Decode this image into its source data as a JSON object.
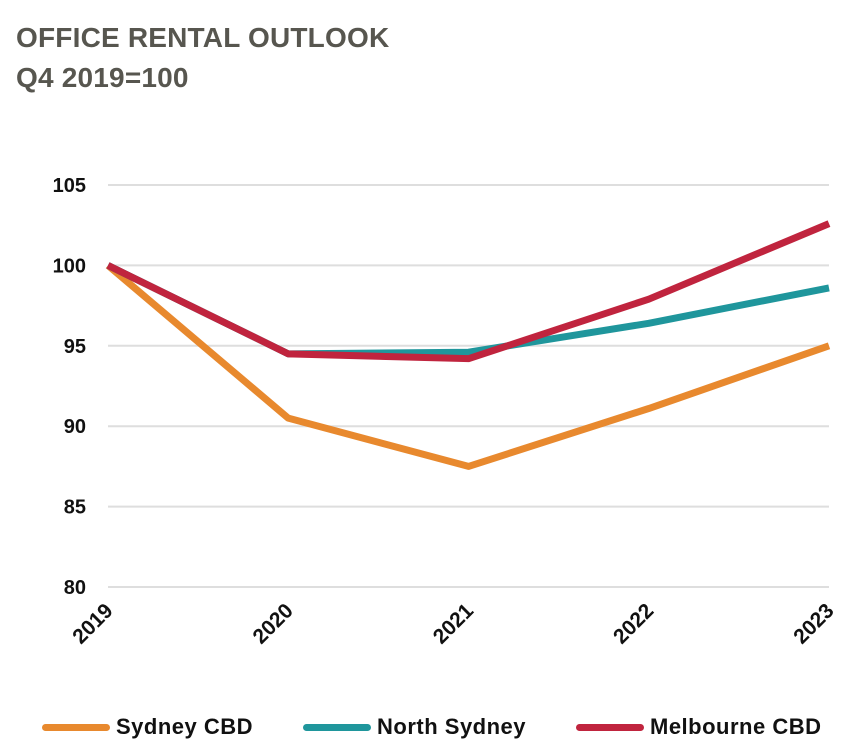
{
  "chart_data": {
    "type": "line",
    "title": "OFFICE RENTAL OUTLOOK",
    "subtitle": "Q4 2019=100",
    "categories": [
      "2019",
      "2020",
      "2021",
      "2022",
      "2023"
    ],
    "ylim": [
      80,
      105
    ],
    "yticks": [
      "80",
      "85",
      "90",
      "95",
      "100",
      "105"
    ],
    "grid": true,
    "legend_position": "bottom",
    "series": [
      {
        "name": "Sydney CBD",
        "color": "#e8892e",
        "values": [
          100,
          90.5,
          87.5,
          91.1,
          95.0
        ]
      },
      {
        "name": "North Sydney",
        "color": "#1f969c",
        "values": [
          100,
          94.5,
          94.6,
          96.4,
          98.6
        ]
      },
      {
        "name": "Melbourne CBD",
        "color": "#c0243e",
        "values": [
          100,
          94.5,
          94.2,
          97.9,
          102.6
        ]
      }
    ]
  }
}
